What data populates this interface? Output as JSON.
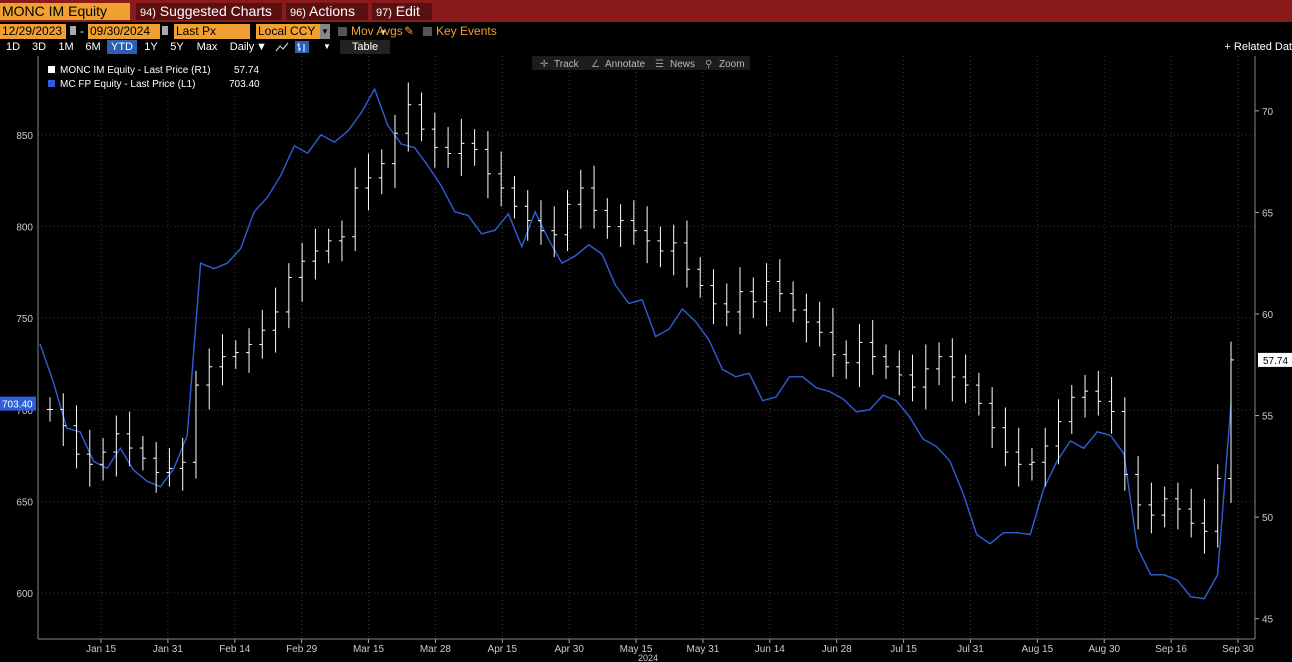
{
  "topbar": {
    "ticker": "MONC IM Equity",
    "menus": [
      {
        "num": "94)",
        "label": "Suggested Charts"
      },
      {
        "num": "96)",
        "label": "Actions"
      },
      {
        "num": "97)",
        "label": "Edit"
      }
    ]
  },
  "controls": {
    "start_date": "12/29/2023",
    "date_sep": "-",
    "end_date": "09/30/2024",
    "price_field": "Last Px",
    "currency": "Local CCY",
    "mov_avgs": "Mov Avgs",
    "key_events": "Key Events"
  },
  "periods": [
    "1D",
    "3D",
    "1M",
    "6M",
    "YTD",
    "1Y",
    "5Y",
    "Max"
  ],
  "selected_period": "YTD",
  "frequency": "Daily",
  "table_label": "Table",
  "related_label": "+ Related Dat",
  "toolbar": [
    "Track",
    "Annotate",
    "News",
    "Zoom"
  ],
  "colors": {
    "background": "#000000",
    "topbar": "#8b1a1a",
    "accent": "#f0a030",
    "series_monc": "#ffffff",
    "series_mc": "#2f5fd8",
    "grid": "#3a3a3a"
  },
  "chart_data": {
    "type": "line",
    "x_ticks": [
      "Jan 15",
      "Jan 31",
      "Feb 14",
      "Feb 29",
      "Mar 15",
      "Mar 28",
      "Apr 15",
      "Apr 30",
      "May 15",
      "May 31",
      "Jun 14",
      "Jun 28",
      "Jul 15",
      "Jul 31",
      "Aug 15",
      "Aug 30",
      "Sep 16",
      "Sep 30"
    ],
    "x_year_label": "2024",
    "left_axis": {
      "ticks": [
        600,
        650,
        700,
        750,
        800,
        850
      ],
      "range": [
        575,
        893
      ]
    },
    "right_axis": {
      "ticks": [
        45,
        50,
        55,
        60,
        65,
        70
      ],
      "range": [
        44.0,
        72.7
      ]
    },
    "legend": [
      {
        "label": "MONC IM Equity - Last Price (R1)",
        "value": "57.74",
        "color": "#ffffff"
      },
      {
        "label": "MC FP Equity - Last Price (L1)",
        "value": "703.40",
        "color": "#2f5fd8"
      }
    ],
    "last_labels": {
      "left": "703.40",
      "right": "57.74"
    },
    "series": [
      {
        "name": "MONC IM Equity - Last Price (R1)",
        "axis": "right",
        "style": "ohlc",
        "values": [
          55.3,
          54.5,
          53.1,
          52.6,
          53.2,
          54.1,
          53.4,
          52.9,
          52.2,
          52.4,
          52.7,
          56.5,
          57.4,
          57.9,
          58.1,
          58.5,
          59.2,
          60.1,
          61.8,
          62.6,
          63.1,
          63.6,
          63.8,
          66.2,
          66.7,
          67.4,
          68.9,
          70.3,
          69.1,
          68.2,
          67.9,
          68.4,
          68.1,
          66.9,
          66.2,
          65.3,
          64.6,
          64.1,
          63.9,
          65.4,
          66.2,
          65.1,
          64.3,
          64.6,
          64.1,
          63.6,
          63.1,
          63.5,
          62.2,
          61.4,
          60.5,
          60.1,
          61.1,
          60.6,
          61.6,
          61.0,
          60.2,
          59.6,
          59.1,
          58.0,
          57.6,
          58.6,
          57.9,
          57.4,
          57.0,
          56.4,
          57.3,
          57.9,
          56.9,
          56.5,
          55.6,
          54.4,
          53.2,
          52.6,
          52.7,
          53.5,
          54.7,
          55.9,
          56.2,
          55.7,
          55.2,
          52.1,
          50.6,
          50.1,
          50.9,
          50.4,
          49.7,
          49.3,
          51.9,
          57.74
        ]
      },
      {
        "name": "MC FP Equity - Last Price (L1)",
        "axis": "left",
        "style": "line",
        "values": [
          736,
          715,
          690,
          688,
          672,
          668,
          679,
          667,
          661,
          658,
          668,
          686,
          780,
          777,
          780,
          788,
          808,
          816,
          828,
          844,
          840,
          850,
          846,
          852,
          862,
          875,
          855,
          845,
          843,
          833,
          822,
          808,
          806,
          796,
          798,
          807,
          789,
          808,
          793,
          780,
          784,
          790,
          785,
          768,
          758,
          760,
          740,
          744,
          755,
          748,
          738,
          722,
          718,
          720,
          705,
          707,
          718,
          718,
          712,
          710,
          706,
          699,
          700,
          708,
          705,
          696,
          684,
          680,
          672,
          654,
          632,
          627,
          633,
          633,
          632,
          657,
          672,
          683,
          679,
          688,
          686,
          676,
          625,
          610,
          610,
          607,
          598,
          597,
          610,
          703.4
        ]
      }
    ]
  }
}
